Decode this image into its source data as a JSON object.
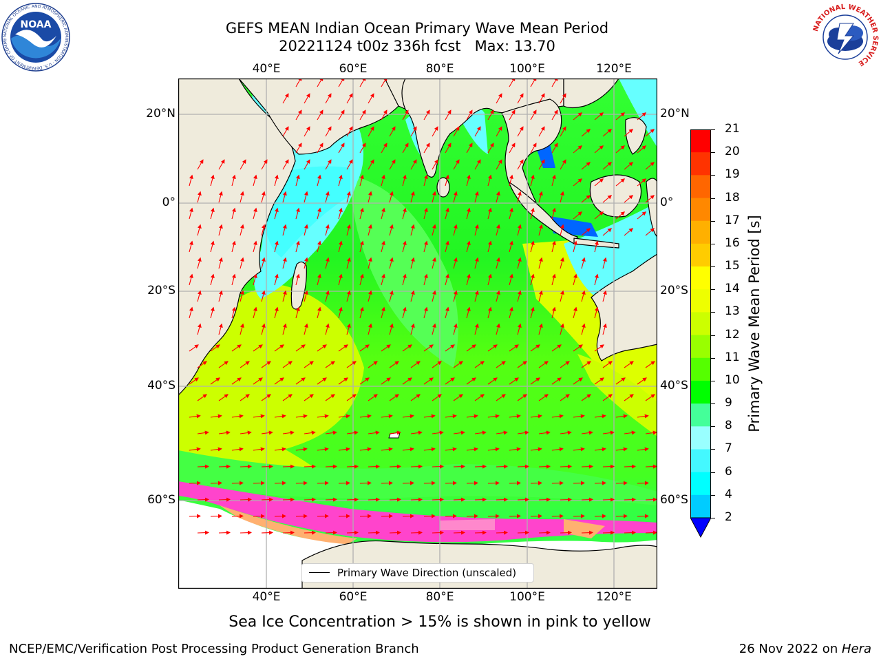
{
  "title": {
    "line1": "GEFS MEAN Indian Ocean Primary Wave Mean Period",
    "line2": "20221124 t00z 336h fcst   Max: 13.70"
  },
  "map": {
    "lon_ticks": [
      "40°E",
      "60°E",
      "80°E",
      "100°E",
      "120°E"
    ],
    "lat_ticks_left": [
      "20°N",
      "0°",
      "20°S",
      "40°S",
      "60°S"
    ],
    "lat_ticks_right": [
      "20°N",
      "0°",
      "20°S",
      "40°S",
      "60°S"
    ],
    "legend_label": "Primary Wave Direction (unscaled)",
    "arrow_color": "#ff0000",
    "land_color": "#efebdc",
    "ice_colors": [
      "#ff44cc",
      "#ff88cc",
      "#ffb070",
      "#ffff66"
    ]
  },
  "colorbar": {
    "label": "Primary Wave Mean Period [s]",
    "ticks": [
      "2",
      "4",
      "6",
      "7",
      "8",
      "9",
      "10",
      "11",
      "12",
      "13",
      "14",
      "15",
      "16",
      "17",
      "18",
      "19",
      "20",
      "21"
    ],
    "colors": [
      "#0066ff",
      "#00ccff",
      "#00ffff",
      "#44f8ff",
      "#99ffff",
      "#44ff99",
      "#00ff00",
      "#55ff00",
      "#99ff00",
      "#ccff00",
      "#eeff00",
      "#ffff00",
      "#ffcc00",
      "#ffb000",
      "#ff8800",
      "#ff6600",
      "#ff3300",
      "#ff0000"
    ],
    "under_color": "#0000ff"
  },
  "subtitle": "Sea Ice Concentration > 15% is shown in pink to yellow",
  "footer": {
    "left": "NCEP/EMC/Verification Post Processing Product Generation Branch",
    "right_date": "26 Nov 2022 on ",
    "right_host": "Hera"
  },
  "logos": {
    "noaa": "NOAA",
    "noaa_ring": "NATIONAL OCEANIC AND ATMOSPHERIC ADMINISTRATION · U.S. DEPARTMENT OF COMMERCE",
    "nws": "NATIONAL WEATHER SERVICE"
  }
}
